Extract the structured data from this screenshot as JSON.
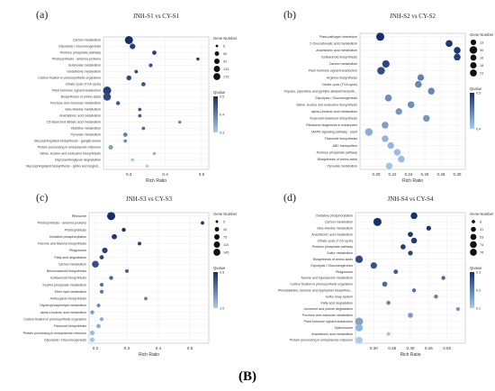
{
  "figure_label": "(B)",
  "legend": {
    "size_title": "Gene Number",
    "color_title": "Qvalue"
  },
  "chart_data": [
    {
      "type": "scatter",
      "panel": "(a)",
      "title": "JNH-S1 vs CY-S1",
      "xlabel": "Rich Ratio",
      "xlim": [
        0.23,
        0.52
      ],
      "xticks": [
        0.3,
        0.4,
        0.5
      ],
      "size_legend": [
        5,
        50,
        92,
        133,
        175
      ],
      "color_legend": [
        "0.5",
        "0.4",
        "0.3"
      ],
      "q_range": [
        0.0,
        0.5
      ],
      "categories": [
        "Carbon metabolism",
        "Glycolysis / Gluconeogenesis",
        "Pentose phosphate pathway",
        "Photosynthesis - antenna proteins",
        "Butanoate metabolism",
        "Glutathione metabolism",
        "Carbon fixation in photosynthetic organisms",
        "Citrate cycle (TCA cycle)",
        "Plant hormone signal transduction",
        "Biosynthesis of amino acids",
        "Fructose and mannose metabolism",
        "beta-Alanine metabolism",
        "Arachidonic acid metabolism",
        "C5-Branched dibasic acid metabolism",
        "Histidine metabolism",
        "Pyruvate metabolism",
        "Glycosphingolipid biosynthesis - ganglio series",
        "Protein processing in endoplasmic reticulum",
        "Valine, leucine and isoleucine biosynthesis",
        "Glycosaminoglycan degradation",
        "Glycosphingolipid biosynthesis - globo and isoglob..."
      ],
      "x": [
        0.3,
        0.31,
        0.37,
        0.49,
        0.36,
        0.32,
        0.3,
        0.34,
        0.24,
        0.24,
        0.27,
        0.33,
        0.33,
        0.44,
        0.34,
        0.29,
        0.29,
        0.25,
        0.37,
        0.31,
        0.35
      ],
      "gene_number": [
        175,
        60,
        25,
        6,
        15,
        10,
        40,
        25,
        175,
        150,
        20,
        10,
        10,
        5,
        10,
        25,
        8,
        30,
        6,
        6,
        6
      ],
      "qvalue": [
        0.0,
        0.05,
        0.05,
        0.05,
        0.12,
        0.08,
        0.08,
        0.12,
        0.05,
        0.08,
        0.15,
        0.15,
        0.15,
        0.25,
        0.2,
        0.25,
        0.28,
        0.35,
        0.42,
        0.48,
        0.5
      ]
    },
    {
      "type": "scatter",
      "panel": "(b)",
      "title": "JNH-S2 vs CY-S2",
      "xlabel": "Rich Ratio",
      "xlim": [
        0.18,
        0.31
      ],
      "xticks": [
        0.2,
        0.22,
        0.24,
        0.26,
        0.28,
        0.3
      ],
      "size_legend": [
        13,
        30,
        16,
        18,
        23
      ],
      "color_legend": [
        "0.5",
        "0.4"
      ],
      "q_range": [
        0.3,
        0.5
      ],
      "categories": [
        "Plant-pathogen interaction",
        "2-Oxocarboxylic acid metabolism",
        "Arachidonic acid metabolism",
        "Isoflavonoid biosynthesis",
        "Carbon metabolism",
        "Plant hormone signal transduction",
        "Arginine biosynthesis",
        "Citrate cycle (TCA cycle)",
        "Tropane, piperidine and pyridine alkaloid biosynth...",
        "Glycolysis / Gluconeogenesis",
        "Valine, leucine and isoleucine biosynthesis",
        "alpha-Linolenic acid metabolism",
        "Terpenoid backbone biosynthesis",
        "Ribosome biogenesis in eukaryotes",
        "MAPK signaling pathway - plant",
        "Flavonoid biosynthesis",
        "ABC transporters",
        "Pentose phosphate pathway",
        "Biosynthesis of amino acids",
        "Pyruvate metabolism"
      ],
      "x": [
        0.205,
        0.29,
        0.3,
        0.3,
        0.212,
        0.206,
        0.255,
        0.252,
        0.268,
        0.215,
        0.243,
        0.228,
        0.262,
        0.211,
        0.191,
        0.211,
        0.218,
        0.226,
        0.231,
        0.216
      ],
      "gene_number": [
        23,
        15,
        14,
        14,
        18,
        20,
        13,
        14,
        14,
        15,
        14,
        13,
        14,
        14,
        20,
        14,
        13,
        14,
        14,
        13
      ],
      "qvalue": [
        0.3,
        0.31,
        0.31,
        0.32,
        0.33,
        0.34,
        0.4,
        0.41,
        0.41,
        0.42,
        0.42,
        0.43,
        0.43,
        0.44,
        0.46,
        0.47,
        0.47,
        0.48,
        0.48,
        0.49
      ]
    },
    {
      "type": "scatter",
      "panel": "(c)",
      "title": "JNH-S3 vs CY-S3",
      "xlabel": "Rich Ratio",
      "xlim": [
        0.18,
        0.56
      ],
      "xticks": [
        0.2,
        0.3,
        0.4,
        0.5
      ],
      "size_legend": [
        5,
        40,
        75,
        110,
        145
      ],
      "color_legend": [
        "0.5",
        "1.0"
      ],
      "q_range": [
        0.0,
        1.0
      ],
      "categories": [
        "Ribosome",
        "Photosynthesis - antenna proteins",
        "Photosynthesis",
        "Oxidative phosphorylation",
        "Flavone and flavonol biosynthesis",
        "Phagosome",
        "Fatty acid degradation",
        "Carbon metabolism",
        "Benzoxazinoid biosynthesis",
        "Isoflavonoid biosynthesis",
        "Inositol phosphate metabolism",
        "Ether lipid metabolism",
        "Anthocyanin biosynthesis",
        "Glycerophospholipid metabolism",
        "alpha-Linolenic acid metabolism",
        "Carbon fixation in photosynthetic organisms",
        "Flavonoid biosynthesis",
        "Protein processing in endoplasmic reticulum",
        "Glycolysis / Gluconeogenesis"
      ],
      "x": [
        0.25,
        0.54,
        0.29,
        0.26,
        0.34,
        0.23,
        0.22,
        0.2,
        0.3,
        0.25,
        0.22,
        0.22,
        0.36,
        0.21,
        0.19,
        0.22,
        0.21,
        0.19,
        0.19
      ],
      "gene_number": [
        145,
        8,
        15,
        40,
        10,
        50,
        20,
        90,
        10,
        15,
        12,
        12,
        8,
        12,
        15,
        12,
        20,
        25,
        25
      ],
      "qvalue": [
        0.0,
        0.02,
        0.03,
        0.05,
        0.1,
        0.12,
        0.15,
        0.2,
        0.3,
        0.35,
        0.4,
        0.45,
        0.5,
        0.6,
        0.7,
        0.75,
        0.8,
        0.88,
        0.95
      ]
    },
    {
      "type": "scatter",
      "panel": "(d)",
      "title": "JNH-S4 vs CY-S4",
      "xlabel": "Rich Ratio",
      "xlim": [
        0.25,
        0.55
      ],
      "xticks": [
        0.3,
        0.35,
        0.4,
        0.45,
        0.5
      ],
      "size_legend": [
        8,
        31,
        53,
        74,
        76
      ],
      "color_legend": [
        "0.3",
        "0.2",
        "0.1"
      ],
      "q_range": [
        0.0,
        0.35
      ],
      "categories": [
        "Oxidative phosphorylation",
        "Carbon metabolism",
        "beta-Alanine metabolism",
        "Arachidonic acid metabolism",
        "Citrate cycle (TCA cycle)",
        "Pentose phosphate pathway",
        "Sulfur metabolism",
        "Biosynthesis of amino acids",
        "Glycolysis / Gluconeogenesis",
        "Phagosome",
        "Taurine and hypotaurine metabolism",
        "Carbon fixation in photosynthetic organisms",
        "Phenylalanine, tyrosine and tryptophan biosynthes...",
        "Sulfur relay system",
        "Fatty acid degradation",
        "Limonene and pinene degradation",
        "Fructose and mannose metabolism",
        "Plant hormone signal transduction",
        "Spliceosome",
        "Arachidonic acid metabolism",
        "Protein processing in endoplasmic reticulum"
      ],
      "x": [
        0.41,
        0.31,
        0.45,
        0.4,
        0.41,
        0.38,
        0.4,
        0.26,
        0.3,
        0.36,
        0.49,
        0.33,
        0.41,
        0.47,
        0.34,
        0.53,
        0.4,
        0.26,
        0.26,
        0.34,
        0.26
      ],
      "gene_number": [
        45,
        76,
        15,
        20,
        30,
        20,
        15,
        60,
        40,
        12,
        8,
        20,
        8,
        8,
        10,
        6,
        20,
        70,
        60,
        6,
        50
      ],
      "qvalue": [
        0.0,
        0.0,
        0.01,
        0.01,
        0.02,
        0.03,
        0.04,
        0.06,
        0.08,
        0.1,
        0.12,
        0.13,
        0.15,
        0.18,
        0.2,
        0.22,
        0.24,
        0.26,
        0.3,
        0.33,
        0.35
      ]
    }
  ]
}
